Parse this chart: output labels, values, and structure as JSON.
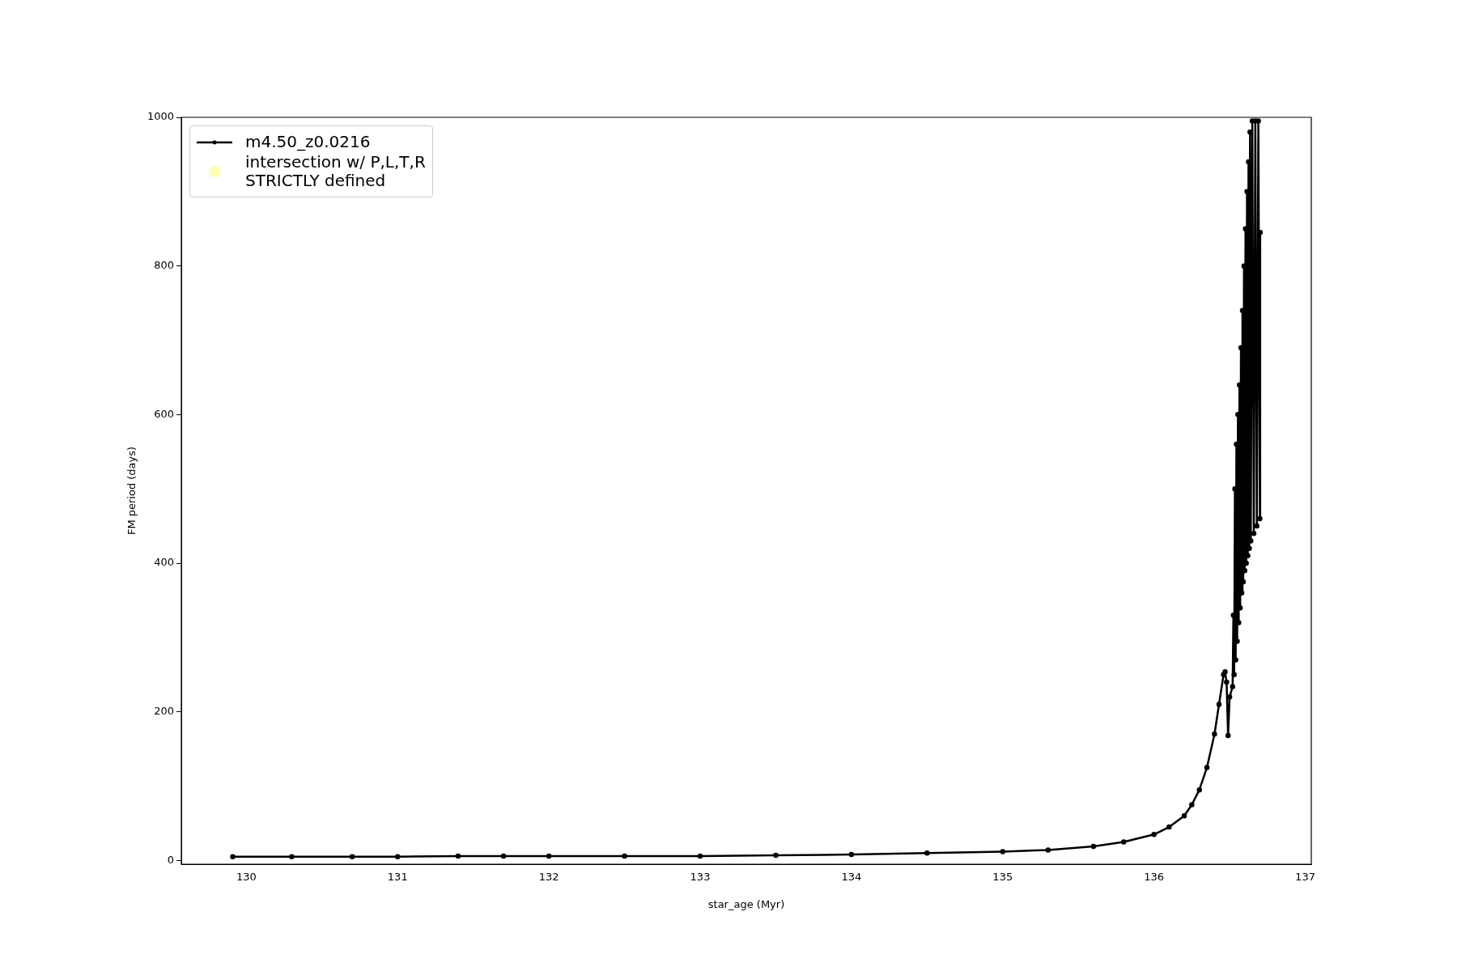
{
  "chart_data": {
    "type": "line",
    "xlabel": "star_age (Myr)",
    "ylabel": "FM period (days)",
    "xlim": [
      129.57,
      137.04
    ],
    "ylim": [
      -5,
      1000
    ],
    "xticks": [
      130,
      131,
      132,
      133,
      134,
      135,
      136,
      137
    ],
    "yticks": [
      0,
      200,
      400,
      600,
      800,
      1000
    ],
    "grid": false,
    "legend": "top left",
    "marker": "circle",
    "line_style": "solid",
    "series": [
      {
        "name": "m4.50_z0.0216",
        "color": "#000000",
        "x": [
          129.91,
          130.3,
          130.7,
          131,
          131.4,
          131.7,
          132,
          132.5,
          133,
          133.5,
          134,
          134.5,
          135,
          135.3,
          135.6,
          135.8,
          136,
          136.1,
          136.2,
          136.25,
          136.3,
          136.35,
          136.4,
          136.43,
          136.46,
          136.47,
          136.48,
          136.49,
          136.5,
          136.52,
          136.525,
          136.53,
          136.535,
          136.54,
          136.545,
          136.55,
          136.555,
          136.56,
          136.565,
          136.57,
          136.575,
          136.58,
          136.585,
          136.59,
          136.595,
          136.6,
          136.605,
          136.61,
          136.615,
          136.62,
          136.625,
          136.63,
          136.635,
          136.64,
          136.65,
          136.66,
          136.67,
          136.68,
          136.69,
          136.7,
          136.702
        ],
        "values": [
          5,
          5,
          5,
          5,
          6,
          6,
          6,
          6,
          6,
          7,
          8,
          10,
          12,
          14,
          19,
          25,
          35,
          45,
          60,
          75,
          95,
          125,
          170,
          210,
          250,
          254,
          240,
          168,
          220,
          234,
          330,
          250,
          500,
          270,
          560,
          295,
          600,
          320,
          640,
          340,
          690,
          360,
          740,
          375,
          800,
          390,
          850,
          400,
          900,
          410,
          940,
          420,
          980,
          430,
          995,
          440,
          995,
          450,
          995,
          460,
          845
        ]
      },
      {
        "name": "intersection w/ P,L,T,R\nSTRICTLY defined",
        "type": "scatter",
        "color": "#ffffb0"
      }
    ]
  }
}
